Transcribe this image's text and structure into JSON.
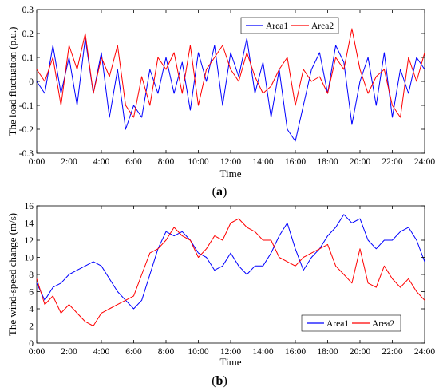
{
  "colors": {
    "area1": "#0000ff",
    "area2": "#ff0000"
  },
  "chart_data": [
    {
      "type": "line",
      "panel_label_prefix": "(",
      "panel_label_letter": "a",
      "panel_label_suffix": ")",
      "xlabel": "Time",
      "ylabel": "The load fluctuation (p.u.)",
      "xlim": [
        0,
        24
      ],
      "ylim": [
        -0.3,
        0.3
      ],
      "x_ticks": [
        0,
        2,
        4,
        6,
        8,
        10,
        12,
        14,
        16,
        18,
        20,
        22,
        24
      ],
      "x_tick_labels": [
        "0:00",
        "2:00",
        "4:00",
        "6:00",
        "8:00",
        "10:00",
        "12:00",
        "14:00",
        "16:00",
        "18:00",
        "20:00",
        "22:00",
        "24:00"
      ],
      "y_ticks": [
        -0.3,
        -0.2,
        -0.1,
        0,
        0.1,
        0.2,
        0.3
      ],
      "y_tick_labels": [
        "-0.3",
        "-0.2",
        "-0.1",
        "0",
        "0.1",
        "0.2",
        "0.3"
      ],
      "legend_position": "top-right",
      "series": [
        {
          "name": "Area1",
          "color": "#0000ff",
          "x": [
            0,
            0.5,
            1,
            1.5,
            2,
            2.5,
            3,
            3.5,
            4,
            4.5,
            5,
            5.5,
            6,
            6.5,
            7,
            7.5,
            8,
            8.5,
            9,
            9.5,
            10,
            10.5,
            11,
            11.5,
            12,
            12.5,
            13,
            13.5,
            14,
            14.5,
            15,
            15.5,
            16,
            16.5,
            17,
            17.5,
            18,
            18.5,
            19,
            19.5,
            20,
            20.5,
            21,
            21.5,
            22,
            22.5,
            23,
            23.5,
            24
          ],
          "values": [
            0.0,
            -0.05,
            0.15,
            -0.05,
            0.1,
            -0.1,
            0.18,
            -0.05,
            0.12,
            -0.15,
            0.05,
            -0.2,
            -0.1,
            -0.15,
            0.05,
            -0.05,
            0.1,
            -0.05,
            0.08,
            -0.12,
            0.12,
            0.0,
            0.15,
            -0.1,
            0.12,
            0.02,
            0.18,
            -0.05,
            0.08,
            -0.15,
            0.05,
            -0.2,
            -0.25,
            -0.1,
            0.05,
            0.12,
            -0.05,
            0.15,
            0.08,
            -0.18,
            0.0,
            0.1,
            -0.1,
            0.12,
            -0.15,
            0.05,
            -0.05,
            0.1,
            0.05
          ]
        },
        {
          "name": "Area2",
          "color": "#ff0000",
          "x": [
            0,
            0.5,
            1,
            1.5,
            2,
            2.5,
            3,
            3.5,
            4,
            4.5,
            5,
            5.5,
            6,
            6.5,
            7,
            7.5,
            8,
            8.5,
            9,
            9.5,
            10,
            10.5,
            11,
            11.5,
            12,
            12.5,
            13,
            13.5,
            14,
            14.5,
            15,
            15.5,
            16,
            16.5,
            17,
            17.5,
            18,
            18.5,
            19,
            19.5,
            20,
            20.5,
            21,
            21.5,
            22,
            22.5,
            23,
            23.5,
            24
          ],
          "values": [
            0.05,
            0.0,
            0.1,
            -0.1,
            0.15,
            0.05,
            0.2,
            -0.05,
            0.1,
            0.02,
            0.15,
            -0.1,
            -0.15,
            0.02,
            -0.1,
            0.1,
            0.05,
            0.12,
            -0.05,
            0.15,
            -0.1,
            0.05,
            0.1,
            0.15,
            0.05,
            0.0,
            0.12,
            0.02,
            -0.05,
            -0.02,
            0.05,
            0.1,
            -0.1,
            0.05,
            0.0,
            0.02,
            -0.05,
            0.1,
            0.05,
            0.22,
            0.05,
            -0.05,
            0.02,
            0.05,
            -0.1,
            -0.15,
            0.1,
            0.0,
            0.12
          ]
        }
      ]
    },
    {
      "type": "line",
      "panel_label_prefix": "(",
      "panel_label_letter": "b",
      "panel_label_suffix": ")",
      "xlabel": "Time",
      "ylabel": "The wind-speed change (m/s)",
      "xlim": [
        0,
        24
      ],
      "ylim": [
        0,
        16
      ],
      "x_ticks": [
        0,
        2,
        4,
        6,
        8,
        10,
        12,
        14,
        16,
        18,
        20,
        22,
        24
      ],
      "x_tick_labels": [
        "0:00",
        "2:00",
        "4:00",
        "6:00",
        "8:00",
        "10:00",
        "12:00",
        "14:00",
        "16:00",
        "18:00",
        "20:00",
        "22:00",
        "24:00"
      ],
      "y_ticks": [
        0,
        2,
        4,
        6,
        8,
        10,
        12,
        14,
        16
      ],
      "y_tick_labels": [
        "0",
        "2",
        "4",
        "6",
        "8",
        "10",
        "12",
        "14",
        "16"
      ],
      "legend_position": "bottom-right",
      "series": [
        {
          "name": "Area1",
          "color": "#0000ff",
          "x": [
            0,
            0.5,
            1,
            1.5,
            2,
            2.5,
            3,
            3.5,
            4,
            4.5,
            5,
            5.5,
            6,
            6.5,
            7,
            7.5,
            8,
            8.5,
            9,
            9.5,
            10,
            10.5,
            11,
            11.5,
            12,
            12.5,
            13,
            13.5,
            14,
            14.5,
            15,
            15.5,
            16,
            16.5,
            17,
            17.5,
            18,
            18.5,
            19,
            19.5,
            20,
            20.5,
            21,
            21.5,
            22,
            22.5,
            23,
            23.5,
            24
          ],
          "values": [
            7,
            5,
            6.5,
            7,
            8,
            8.5,
            9,
            9.5,
            9,
            7.5,
            6,
            5,
            4,
            5,
            8,
            11,
            13,
            12.5,
            13,
            12,
            10.5,
            10,
            8.5,
            9,
            10.5,
            9,
            8,
            9,
            9,
            10.5,
            12.5,
            14,
            11,
            8.5,
            10,
            11,
            12.5,
            13.5,
            15,
            14,
            14.5,
            12,
            11,
            12,
            12,
            13,
            13.5,
            12,
            9.5
          ]
        },
        {
          "name": "Area2",
          "color": "#ff0000",
          "x": [
            0,
            0.5,
            1,
            1.5,
            2,
            2.5,
            3,
            3.5,
            4,
            4.5,
            5,
            5.5,
            6,
            6.5,
            7,
            7.5,
            8,
            8.5,
            9,
            9.5,
            10,
            10.5,
            11,
            11.5,
            12,
            12.5,
            13,
            13.5,
            14,
            14.5,
            15,
            15.5,
            16,
            16.5,
            17,
            17.5,
            18,
            18.5,
            19,
            19.5,
            20,
            20.5,
            21,
            21.5,
            22,
            22.5,
            23,
            23.5,
            24
          ],
          "values": [
            7.5,
            4.5,
            5.5,
            3.5,
            4.5,
            3.5,
            2.5,
            2,
            3.5,
            4,
            4.5,
            5,
            5.5,
            8,
            10.5,
            11,
            12,
            13.5,
            12.5,
            12,
            10,
            11,
            12.5,
            12,
            14,
            14.5,
            13.5,
            13,
            12,
            12,
            10,
            9.5,
            9,
            10,
            10.5,
            11,
            11.5,
            9,
            8,
            7,
            11,
            7,
            6.5,
            9,
            7.5,
            6.5,
            7.5,
            6,
            5
          ]
        }
      ]
    }
  ]
}
